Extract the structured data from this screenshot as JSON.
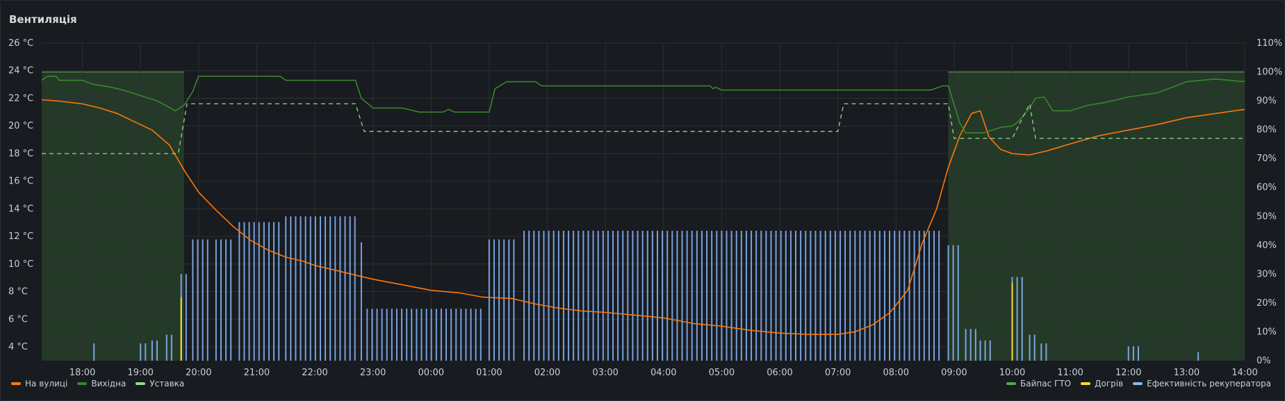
{
  "panel": {
    "title": "Вентиляція"
  },
  "legend": {
    "left": [
      {
        "name": "На вулиці",
        "color": "#ff780a"
      },
      {
        "name": "Вихідна",
        "color": "#37872d"
      },
      {
        "name": "Уставка",
        "color": "#96d98d"
      }
    ],
    "right": [
      {
        "name": "Байпас ГТО",
        "color": "#56a64b"
      },
      {
        "name": "Догрів",
        "color": "#fade2a"
      },
      {
        "name": "Ефективність рекуператора",
        "color": "#8ab8ff"
      }
    ]
  },
  "chart_data": {
    "type": "line",
    "x_start_hour": 17.3,
    "x_end_hour": 38.0,
    "xticks": [
      "18:00",
      "19:00",
      "20:00",
      "21:00",
      "22:00",
      "23:00",
      "00:00",
      "01:00",
      "02:00",
      "03:00",
      "04:00",
      "05:00",
      "06:00",
      "07:00",
      "08:00",
      "09:00",
      "10:00",
      "11:00",
      "12:00",
      "13:00",
      "14:00"
    ],
    "y_left": {
      "min": 3,
      "max": 26,
      "ticks": [
        "4 °C",
        "6 °C",
        "8 °C",
        "10 °C",
        "12 °C",
        "14 °C",
        "16 °C",
        "18 °C",
        "20 °C",
        "22 °C",
        "24 °C",
        "26 °C"
      ],
      "tick_values": [
        4,
        6,
        8,
        10,
        12,
        14,
        16,
        18,
        20,
        22,
        24,
        26
      ]
    },
    "y_right": {
      "min": 0,
      "max": 110,
      "ticks": [
        "0%",
        "10%",
        "20%",
        "30%",
        "40%",
        "50%",
        "60%",
        "70%",
        "80%",
        "90%",
        "100%",
        "110%"
      ],
      "tick_values": [
        0,
        10,
        20,
        30,
        40,
        50,
        60,
        70,
        80,
        90,
        100,
        110
      ]
    },
    "bypass_regions": [
      {
        "from": 17.3,
        "to": 19.75
      },
      {
        "from": 32.9,
        "to": 38.0
      }
    ],
    "bypass_value_pct": 100,
    "series": [
      {
        "name": "На вулиці",
        "axis": "left",
        "color": "#ff780a",
        "points": [
          [
            17.3,
            21.9
          ],
          [
            17.6,
            21.8
          ],
          [
            18.0,
            21.6
          ],
          [
            18.3,
            21.3
          ],
          [
            18.6,
            20.9
          ],
          [
            18.9,
            20.3
          ],
          [
            19.2,
            19.7
          ],
          [
            19.5,
            18.6
          ],
          [
            19.75,
            16.8
          ],
          [
            20.0,
            15.2
          ],
          [
            20.3,
            13.9
          ],
          [
            20.6,
            12.7
          ],
          [
            20.9,
            11.7
          ],
          [
            21.2,
            11.0
          ],
          [
            21.5,
            10.5
          ],
          [
            21.8,
            10.2
          ],
          [
            22.0,
            9.9
          ],
          [
            22.5,
            9.4
          ],
          [
            22.8,
            9.1
          ],
          [
            23.0,
            8.9
          ],
          [
            23.5,
            8.5
          ],
          [
            24.0,
            8.1
          ],
          [
            24.5,
            7.9
          ],
          [
            24.9,
            7.6
          ],
          [
            25.4,
            7.5
          ],
          [
            25.8,
            7.1
          ],
          [
            26.2,
            6.8
          ],
          [
            26.6,
            6.6
          ],
          [
            27.0,
            6.5
          ],
          [
            27.5,
            6.3
          ],
          [
            28.0,
            6.1
          ],
          [
            28.5,
            5.7
          ],
          [
            29.0,
            5.5
          ],
          [
            29.5,
            5.2
          ],
          [
            30.0,
            5.0
          ],
          [
            30.5,
            4.9
          ],
          [
            31.0,
            4.9
          ],
          [
            31.3,
            5.1
          ],
          [
            31.6,
            5.6
          ],
          [
            31.9,
            6.5
          ],
          [
            32.2,
            8.1
          ],
          [
            32.45,
            11.5
          ],
          [
            32.7,
            14.0
          ],
          [
            32.9,
            17.0
          ],
          [
            33.1,
            19.3
          ],
          [
            33.3,
            20.9
          ],
          [
            33.45,
            21.1
          ],
          [
            33.6,
            19.2
          ],
          [
            33.8,
            18.3
          ],
          [
            34.0,
            18.0
          ],
          [
            34.3,
            17.9
          ],
          [
            34.6,
            18.2
          ],
          [
            35.0,
            18.7
          ],
          [
            35.5,
            19.3
          ],
          [
            36.0,
            19.7
          ],
          [
            36.5,
            20.1
          ],
          [
            37.0,
            20.6
          ],
          [
            37.5,
            20.9
          ],
          [
            38.0,
            21.2
          ]
        ]
      },
      {
        "name": "Вихідна",
        "axis": "left",
        "color": "#37872d",
        "points": [
          [
            17.3,
            23.3
          ],
          [
            17.4,
            23.6
          ],
          [
            17.55,
            23.6
          ],
          [
            17.6,
            23.3
          ],
          [
            18.0,
            23.3
          ],
          [
            18.2,
            23.0
          ],
          [
            18.5,
            22.8
          ],
          [
            18.7,
            22.6
          ],
          [
            19.0,
            22.2
          ],
          [
            19.3,
            21.8
          ],
          [
            19.6,
            21.1
          ],
          [
            19.75,
            21.5
          ],
          [
            19.9,
            22.5
          ],
          [
            20.0,
            23.6
          ],
          [
            21.0,
            23.6
          ],
          [
            21.4,
            23.6
          ],
          [
            21.5,
            23.3
          ],
          [
            22.0,
            23.3
          ],
          [
            22.7,
            23.3
          ],
          [
            22.8,
            22.0
          ],
          [
            23.0,
            21.3
          ],
          [
            23.5,
            21.3
          ],
          [
            23.8,
            21.0
          ],
          [
            24.2,
            21.0
          ],
          [
            24.3,
            21.2
          ],
          [
            24.4,
            21.0
          ],
          [
            25.0,
            21.0
          ],
          [
            25.1,
            22.7
          ],
          [
            25.3,
            23.2
          ],
          [
            25.8,
            23.2
          ],
          [
            25.9,
            22.9
          ],
          [
            27.0,
            22.9
          ],
          [
            28.0,
            22.9
          ],
          [
            28.8,
            22.9
          ],
          [
            28.85,
            22.7
          ],
          [
            28.9,
            22.8
          ],
          [
            29.0,
            22.6
          ],
          [
            30.0,
            22.6
          ],
          [
            31.0,
            22.6
          ],
          [
            32.0,
            22.6
          ],
          [
            32.6,
            22.6
          ],
          [
            32.8,
            22.9
          ],
          [
            32.9,
            22.9
          ],
          [
            33.1,
            20.2
          ],
          [
            33.2,
            19.5
          ],
          [
            33.5,
            19.5
          ],
          [
            33.8,
            19.9
          ],
          [
            34.0,
            20.0
          ],
          [
            34.1,
            20.3
          ],
          [
            34.3,
            21.3
          ],
          [
            34.4,
            22.0
          ],
          [
            34.55,
            22.1
          ],
          [
            34.7,
            21.1
          ],
          [
            35.0,
            21.1
          ],
          [
            35.3,
            21.5
          ],
          [
            35.6,
            21.7
          ],
          [
            36.0,
            22.1
          ],
          [
            36.5,
            22.4
          ],
          [
            37.0,
            23.2
          ],
          [
            37.5,
            23.4
          ],
          [
            38.0,
            23.2
          ]
        ]
      },
      {
        "name": "Уставка",
        "axis": "left",
        "color": "#96d98d",
        "dashed": true,
        "points": [
          [
            17.3,
            18.0
          ],
          [
            19.5,
            18.0
          ],
          [
            19.65,
            18.0
          ],
          [
            19.8,
            21.6
          ],
          [
            22.7,
            21.6
          ],
          [
            22.85,
            19.6
          ],
          [
            31.0,
            19.6
          ],
          [
            31.1,
            21.6
          ],
          [
            32.9,
            21.6
          ],
          [
            33.0,
            19.1
          ],
          [
            34.0,
            19.1
          ],
          [
            34.3,
            21.6
          ],
          [
            34.4,
            19.1
          ],
          [
            38.0,
            19.1
          ]
        ]
      }
    ],
    "efficiency_bars": {
      "name": "Ефективність рекуператора",
      "axis": "right",
      "color": "#8ab8ff",
      "segments": [
        {
          "from": 18.2,
          "to": 18.2,
          "value": 6
        },
        {
          "from": 19.0,
          "to": 19.1,
          "value": 6
        },
        {
          "from": 19.2,
          "to": 19.35,
          "value": 7
        },
        {
          "from": 19.45,
          "to": 19.6,
          "value": 9
        },
        {
          "from": 19.7,
          "to": 19.8,
          "value": 30
        },
        {
          "from": 19.9,
          "to": 20.2,
          "value": 42
        },
        {
          "from": 20.3,
          "to": 20.6,
          "value": 42
        },
        {
          "from": 20.7,
          "to": 21.4,
          "value": 48
        },
        {
          "from": 21.5,
          "to": 22.7,
          "value": 50
        },
        {
          "from": 22.8,
          "to": 22.8,
          "value": 41
        },
        {
          "from": 22.9,
          "to": 24.9,
          "value": 18
        },
        {
          "from": 25.0,
          "to": 25.5,
          "value": 42
        },
        {
          "from": 25.6,
          "to": 32.8,
          "value": 45
        },
        {
          "from": 32.9,
          "to": 33.1,
          "value": 40
        },
        {
          "from": 33.2,
          "to": 33.4,
          "value": 11
        },
        {
          "from": 33.45,
          "to": 33.7,
          "value": 7
        },
        {
          "from": 34.0,
          "to": 34.2,
          "value": 29
        },
        {
          "from": 34.3,
          "to": 34.4,
          "value": 9
        },
        {
          "from": 34.5,
          "to": 34.6,
          "value": 6
        },
        {
          "from": 36.0,
          "to": 36.2,
          "value": 5
        },
        {
          "from": 37.2,
          "to": 37.2,
          "value": 3
        }
      ]
    },
    "reheat_bars": {
      "name": "Догрів",
      "axis": "right",
      "color": "#fade2a",
      "segments": [
        {
          "from": 19.7,
          "to": 19.7,
          "value": 22
        },
        {
          "from": 34.0,
          "to": 34.0,
          "value": 27
        }
      ]
    }
  }
}
